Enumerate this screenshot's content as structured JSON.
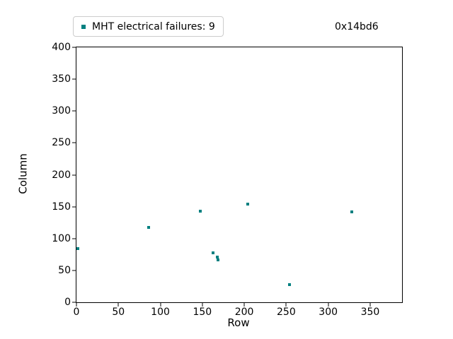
{
  "annotation": "0x14bd6",
  "legend": {
    "label": "MHT electrical failures: 9"
  },
  "chart_data": {
    "type": "scatter",
    "title": "",
    "xlabel": "Row",
    "ylabel": "Column",
    "xlim": [
      0,
      388
    ],
    "ylim": [
      0,
      400
    ],
    "xticks": [
      0,
      50,
      100,
      150,
      200,
      250,
      300,
      350
    ],
    "yticks": [
      0,
      50,
      100,
      150,
      200,
      250,
      300,
      350,
      400
    ],
    "grid": false,
    "legend_position": "outside-top-left",
    "series": [
      {
        "name": "MHT electrical failures",
        "count": 9,
        "marker": "square",
        "color": "#008080",
        "points": [
          [
            2,
            84
          ],
          [
            86,
            117
          ],
          [
            148,
            143
          ],
          [
            163,
            78
          ],
          [
            168,
            71
          ],
          [
            169,
            67
          ],
          [
            204,
            154
          ],
          [
            254,
            28
          ],
          [
            328,
            142
          ]
        ]
      }
    ]
  },
  "colors": {
    "marker": "#008080",
    "legend_border": "#cccccc",
    "axis": "#000000",
    "background": "#ffffff"
  }
}
